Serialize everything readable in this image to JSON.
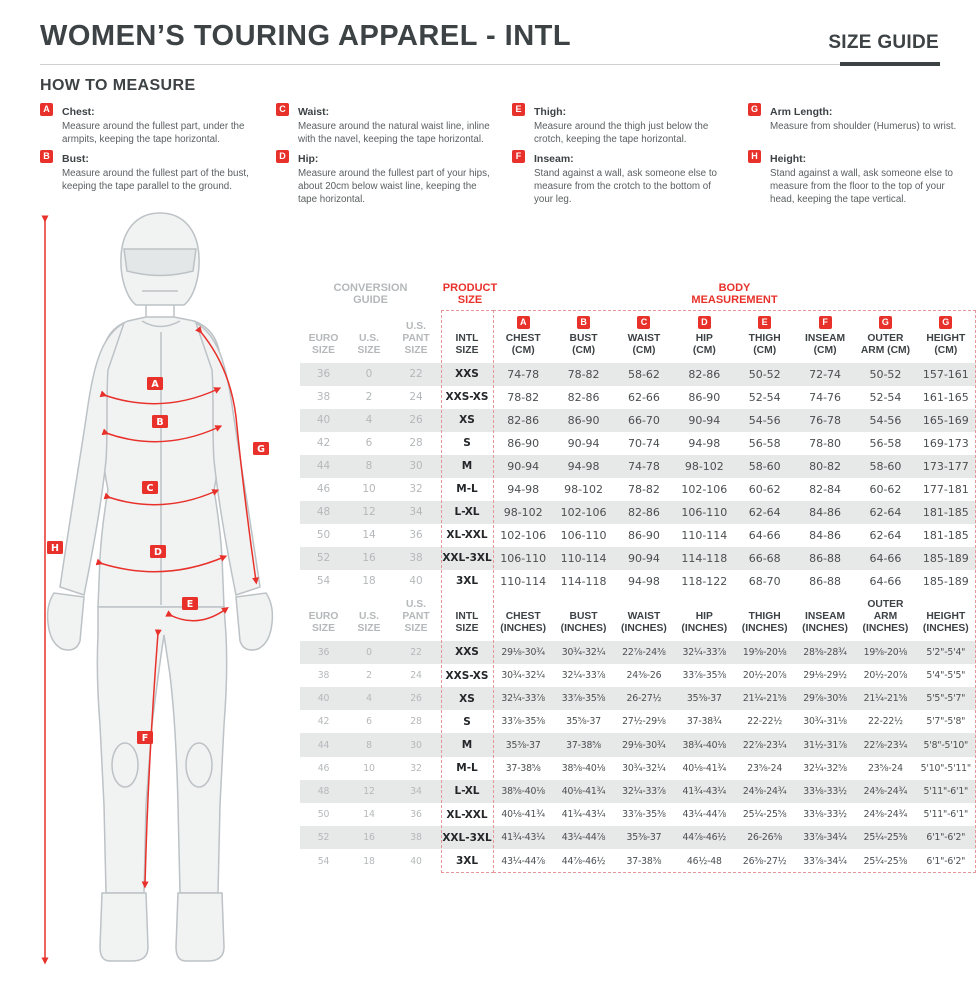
{
  "page": {
    "title": "WOMEN’S TOURING APPAREL - INTL",
    "size_guide_label": "SIZE GUIDE",
    "how_to_measure_title": "HOW TO MEASURE"
  },
  "colors": {
    "accent_red": "#e8312a",
    "heading_gray": "#3d4245",
    "muted_gray": "#b5b8ba",
    "stripe_gray": "#e7e8e8"
  },
  "measure_items": [
    {
      "letter": "A",
      "name": "Chest:",
      "text": "Measure around the fullest part, under the armpits, keeping the tape horizontal."
    },
    {
      "letter": "B",
      "name": "Bust:",
      "text": "Measure around the fullest part of the bust, keeping the tape parallel to the ground."
    },
    {
      "letter": "C",
      "name": "Waist:",
      "text": "Measure around the natural waist line, inline with the navel, keeping the tape horizontal."
    },
    {
      "letter": "D",
      "name": "Hip:",
      "text": "Measure around the fullest part of your hips, about 20cm below waist line, keeping the tape horizontal."
    },
    {
      "letter": "E",
      "name": "Thigh:",
      "text": "Measure around the thigh just below the crotch, keeping the tape horizontal."
    },
    {
      "letter": "F",
      "name": "Inseam:",
      "text": "Stand against a wall, ask someone else to measure from the crotch to the bottom of your leg."
    },
    {
      "letter": "G",
      "name": "Arm Length:",
      "text": "Measure from shoulder (Humerus) to wrist."
    },
    {
      "letter": "H",
      "name": "Height:",
      "text": "Stand against a wall, ask someone else to measure from the floor to the top of your head, keeping the tape vertical."
    }
  ],
  "figure_badges": [
    "A",
    "B",
    "C",
    "D",
    "E",
    "F",
    "G",
    "H"
  ],
  "table": {
    "group_headers": {
      "conversion": "CONVERSION GUIDE",
      "product": "PRODUCT SIZE",
      "body": "BODY MEASUREMENT"
    },
    "cm": {
      "columns": [
        {
          "badge": "",
          "l1": "EURO",
          "l2": "SIZE"
        },
        {
          "badge": "",
          "l1": "U.S.",
          "l2": "SIZE"
        },
        {
          "badge": "",
          "l1": "U.S.",
          "l2": "PANT SIZE"
        },
        {
          "badge": "",
          "l1": "INTL",
          "l2": "SIZE"
        },
        {
          "badge": "A",
          "l1": "CHEST",
          "l2": "(CM)"
        },
        {
          "badge": "B",
          "l1": "BUST",
          "l2": "(CM)"
        },
        {
          "badge": "C",
          "l1": "WAIST",
          "l2": "(CM)"
        },
        {
          "badge": "D",
          "l1": "HIP",
          "l2": "(CM)"
        },
        {
          "badge": "E",
          "l1": "THIGH",
          "l2": "(CM)"
        },
        {
          "badge": "F",
          "l1": "INSEAM",
          "l2": "(CM)"
        },
        {
          "badge": "G",
          "l1": "OUTER",
          "l2": "ARM (CM)"
        },
        {
          "badge": "G",
          "l1": "HEIGHT",
          "l2": "(CM)"
        }
      ],
      "rows": [
        [
          "36",
          "0",
          "22",
          "XXS",
          "74-78",
          "78-82",
          "58-62",
          "82-86",
          "50-52",
          "72-74",
          "50-52",
          "157-161"
        ],
        [
          "38",
          "2",
          "24",
          "XXS-XS",
          "78-82",
          "82-86",
          "62-66",
          "86-90",
          "52-54",
          "74-76",
          "52-54",
          "161-165"
        ],
        [
          "40",
          "4",
          "26",
          "XS",
          "82-86",
          "86-90",
          "66-70",
          "90-94",
          "54-56",
          "76-78",
          "54-56",
          "165-169"
        ],
        [
          "42",
          "6",
          "28",
          "S",
          "86-90",
          "90-94",
          "70-74",
          "94-98",
          "56-58",
          "78-80",
          "56-58",
          "169-173"
        ],
        [
          "44",
          "8",
          "30",
          "M",
          "90-94",
          "94-98",
          "74-78",
          "98-102",
          "58-60",
          "80-82",
          "58-60",
          "173-177"
        ],
        [
          "46",
          "10",
          "32",
          "M-L",
          "94-98",
          "98-102",
          "78-82",
          "102-106",
          "60-62",
          "82-84",
          "60-62",
          "177-181"
        ],
        [
          "48",
          "12",
          "34",
          "L-XL",
          "98-102",
          "102-106",
          "82-86",
          "106-110",
          "62-64",
          "84-86",
          "62-64",
          "181-185"
        ],
        [
          "50",
          "14",
          "36",
          "XL-XXL",
          "102-106",
          "106-110",
          "86-90",
          "110-114",
          "64-66",
          "84-86",
          "62-64",
          "181-185"
        ],
        [
          "52",
          "16",
          "38",
          "XXL-3XL",
          "106-110",
          "110-114",
          "90-94",
          "114-118",
          "66-68",
          "86-88",
          "64-66",
          "185-189"
        ],
        [
          "54",
          "18",
          "40",
          "3XL",
          "110-114",
          "114-118",
          "94-98",
          "118-122",
          "68-70",
          "86-88",
          "64-66",
          "185-189"
        ]
      ]
    },
    "inches": {
      "columns": [
        {
          "badge": "",
          "l1": "EURO",
          "l2": "SIZE"
        },
        {
          "badge": "",
          "l1": "U.S.",
          "l2": "SIZE"
        },
        {
          "badge": "",
          "l1": "U.S.",
          "l2": "PANT SIZE"
        },
        {
          "badge": "",
          "l1": "INTL",
          "l2": "SIZE"
        },
        {
          "badge": "",
          "l1": "CHEST",
          "l2": "(INCHES)"
        },
        {
          "badge": "",
          "l1": "BUST",
          "l2": "(INCHES)"
        },
        {
          "badge": "",
          "l1": "WAIST",
          "l2": "(INCHES)"
        },
        {
          "badge": "",
          "l1": "HIP",
          "l2": "(INCHES)"
        },
        {
          "badge": "",
          "l1": "THIGH",
          "l2": "(INCHES)"
        },
        {
          "badge": "",
          "l1": "INSEAM",
          "l2": "(INCHES)"
        },
        {
          "badge": "",
          "l1": "OUTER ARM",
          "l2": "(INCHES)"
        },
        {
          "badge": "",
          "l1": "HEIGHT",
          "l2": "(INCHES)"
        }
      ],
      "rows": [
        [
          "36",
          "0",
          "22",
          "XXS",
          "29⅛-30¾",
          "30¾-32¼",
          "22⅞-24⅜",
          "32¼-33⅞",
          "19⅝-20⅛",
          "28⅜-28¾",
          "19⅝-20⅛",
          "5'2\"-5'4\""
        ],
        [
          "38",
          "2",
          "24",
          "XXS-XS",
          "30¾-32¼",
          "32¼-33⅞",
          "24⅜-26",
          "33⅞-35⅜",
          "20½-20⅞",
          "29⅛-29½",
          "20½-20⅞",
          "5'4\"-5'5\""
        ],
        [
          "40",
          "4",
          "26",
          "XS",
          "32¼-33⅞",
          "33⅞-35⅝",
          "26-27½",
          "35⅜-37",
          "21¼-21⅝",
          "29⅞-30⅜",
          "21¼-21⅝",
          "5'5\"-5'7\""
        ],
        [
          "42",
          "6",
          "28",
          "S",
          "33⅞-35⅜",
          "35⅝-37",
          "27½-29⅛",
          "37-38¾",
          "22-22½",
          "30¾-31⅛",
          "22-22½",
          "5'7\"-5'8\""
        ],
        [
          "44",
          "8",
          "30",
          "M",
          "35⅜-37",
          "37-38⅝",
          "29⅛-30¾",
          "38¾-40⅛",
          "22⅞-23¼",
          "31½-31⅞",
          "22⅞-23¼",
          "5'8\"-5'10\""
        ],
        [
          "46",
          "10",
          "32",
          "M-L",
          "37-38⅝",
          "38⅝-40⅛",
          "30¾-32¼",
          "40⅛-41¾",
          "23⅝-24",
          "32¼-32⅝",
          "23⅝-24",
          "5'10\"-5'11\""
        ],
        [
          "48",
          "12",
          "34",
          "L-XL",
          "38⅝-40⅛",
          "40⅛-41¾",
          "32¼-33⅞",
          "41¾-43¼",
          "24⅜-24¾",
          "33⅛-33½",
          "24⅜-24¾",
          "5'11\"-6'1\""
        ],
        [
          "50",
          "14",
          "36",
          "XL-XXL",
          "40⅛-41¾",
          "41¾-43¼",
          "33⅞-35⅜",
          "43¼-44⅞",
          "25¼-25⅝",
          "33⅛-33½",
          "24⅜-24¾",
          "5'11\"-6'1\""
        ],
        [
          "52",
          "16",
          "38",
          "XXL-3XL",
          "41¾-43¼",
          "43¼-44⅞",
          "35⅜-37",
          "44⅞-46½",
          "26-26⅜",
          "33⅞-34¼",
          "25¼-25⅜",
          "6'1\"-6'2\""
        ],
        [
          "54",
          "18",
          "40",
          "3XL",
          "43¼-44⅞",
          "44⅞-46½",
          "37-38⅜",
          "46½-48",
          "26⅜-27½",
          "33⅞-34¼",
          "25¼-25⅜",
          "6'1\"-6'2\""
        ]
      ]
    }
  }
}
